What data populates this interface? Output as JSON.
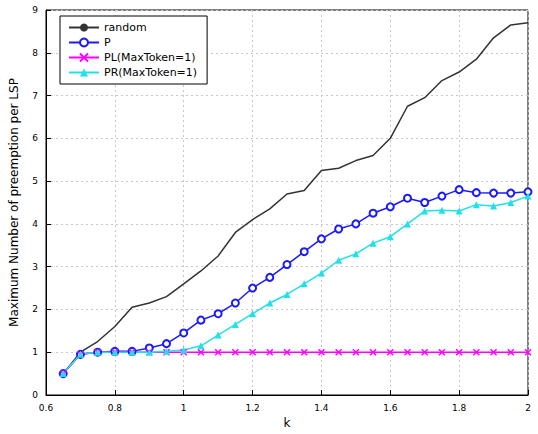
{
  "chart_data": {
    "type": "line",
    "x_label": "k",
    "y_label": "Maximum Number of preemption per LSP",
    "x": [
      0.65,
      0.7,
      0.75,
      0.8,
      0.85,
      0.9,
      0.95,
      1.0,
      1.05,
      1.1,
      1.15,
      1.2,
      1.25,
      1.3,
      1.35,
      1.4,
      1.45,
      1.5,
      1.55,
      1.6,
      1.65,
      1.7,
      1.75,
      1.8,
      1.85,
      1.9,
      1.95,
      2.0
    ],
    "series": [
      {
        "name": "random",
        "color": "#333333",
        "marker": "none",
        "line_style": "solid",
        "values": [
          0.5,
          1.0,
          1.25,
          1.6,
          2.05,
          2.15,
          2.3,
          2.6,
          2.9,
          3.25,
          3.8,
          4.1,
          4.35,
          4.7,
          4.78,
          5.25,
          5.3,
          5.48,
          5.6,
          6.0,
          6.75,
          6.95,
          7.35,
          7.55,
          7.85,
          8.35,
          8.65,
          8.7
        ]
      },
      {
        "name": "P",
        "color": "#1a1aff",
        "marker": "circle",
        "line_style": "solid",
        "values": [
          0.5,
          0.95,
          1.0,
          1.02,
          1.02,
          1.1,
          1.2,
          1.45,
          1.75,
          1.9,
          2.15,
          2.5,
          2.75,
          3.05,
          3.35,
          3.65,
          3.88,
          4.0,
          4.25,
          4.4,
          4.6,
          4.5,
          4.65,
          4.8,
          4.73,
          4.72,
          4.72,
          4.75
        ]
      },
      {
        "name": "PL(MaxToken=1)",
        "color": "#ff00ff",
        "marker": "x",
        "line_style": "solid",
        "values": [
          0.5,
          0.95,
          1.0,
          1.0,
          1.0,
          1.0,
          1.0,
          1.0,
          1.0,
          1.0,
          1.0,
          1.0,
          1.0,
          1.0,
          1.0,
          1.0,
          1.0,
          1.0,
          1.0,
          1.0,
          1.0,
          1.0,
          1.0,
          1.0,
          1.0,
          1.0,
          1.0,
          1.0
        ]
      },
      {
        "name": "PR(MaxToken=1)",
        "color": "#22e0ea",
        "marker": "triangle",
        "line_style": "solid",
        "values": [
          0.5,
          0.95,
          1.0,
          1.0,
          1.0,
          1.0,
          1.02,
          1.05,
          1.15,
          1.4,
          1.65,
          1.9,
          2.15,
          2.35,
          2.6,
          2.85,
          3.15,
          3.3,
          3.55,
          3.7,
          4.0,
          4.3,
          4.32,
          4.3,
          4.45,
          4.42,
          4.5,
          4.65
        ]
      }
    ],
    "xlim": [
      0.6,
      2
    ],
    "xticks": [
      0.6,
      0.8,
      1,
      1.2,
      1.4,
      1.6,
      1.8,
      2
    ],
    "ylim": [
      0,
      9
    ],
    "yticks": [
      0,
      1,
      2,
      3,
      4,
      5,
      6,
      7,
      8,
      9
    ],
    "grid": true,
    "legend": "upper left"
  }
}
